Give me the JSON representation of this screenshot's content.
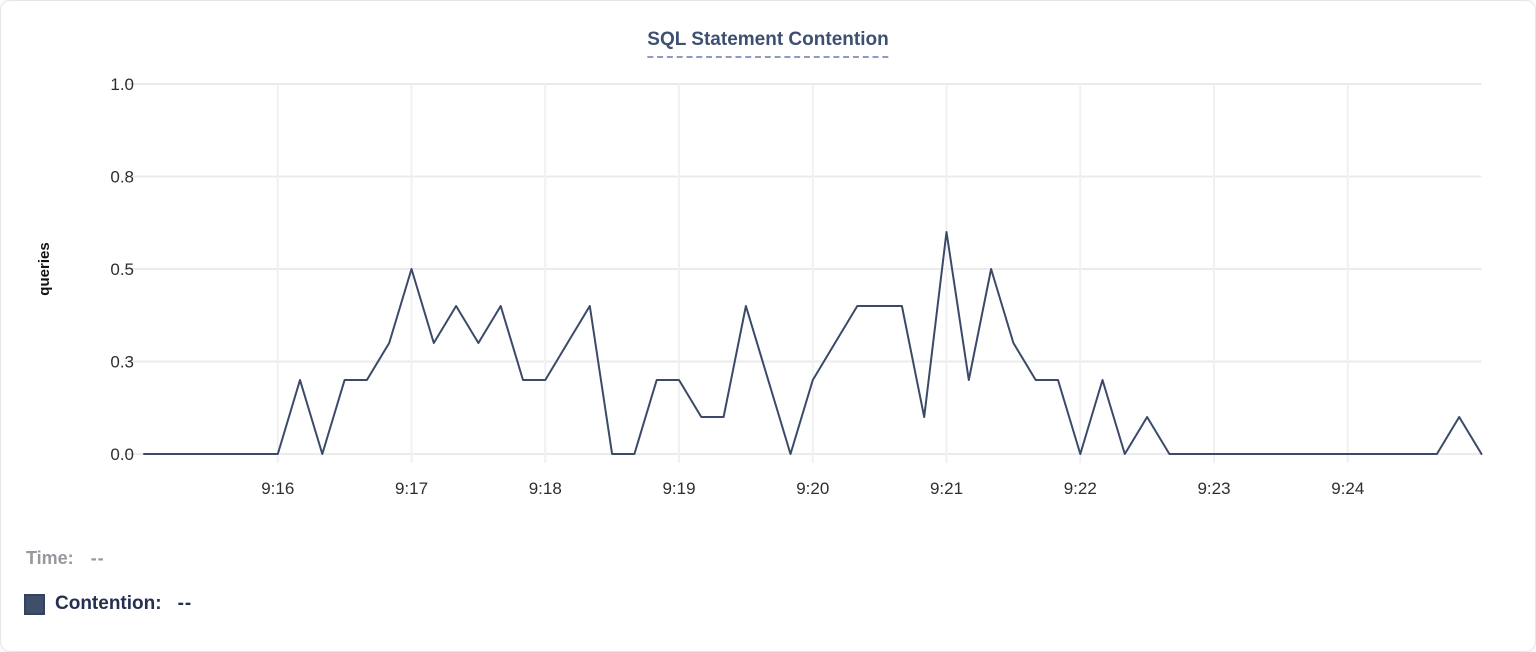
{
  "card": {
    "title": "SQL Statement Contention"
  },
  "legend": {
    "time_label": "Time:",
    "time_value": "--",
    "series_label": "Contention:",
    "series_value": "--",
    "swatch_color": "#3e4e6b",
    "swatch_border_color": "#33425e"
  },
  "colors": {
    "line": "#3b4a68",
    "title": "#3d5070",
    "title_underline": "#8f99c6",
    "h_grid": "#ebebee",
    "v_grid": "#f1f1f3",
    "tick_text": "#2e2e31"
  },
  "chart_data": {
    "type": "line",
    "title": "SQL Statement Contention",
    "xlabel": "",
    "ylabel": "queries",
    "ylim": [
      0,
      1
    ],
    "grid": true,
    "legend_position": "bottom-left",
    "y_ticks": [
      {
        "value": 0,
        "label": "0.0"
      },
      {
        "value": 0.25,
        "label": "0.3"
      },
      {
        "value": 0.5,
        "label": "0.5"
      },
      {
        "value": 0.75,
        "label": "0.8"
      },
      {
        "value": 1,
        "label": "1.0"
      }
    ],
    "x_tick_labels": [
      "9:16",
      "9:17",
      "9:18",
      "9:19",
      "9:20",
      "9:21",
      "9:22",
      "9:23",
      "9:24"
    ],
    "x_start": "9:15:00",
    "x_end": "9:25:00",
    "sample_interval_seconds": 10,
    "series": [
      {
        "name": "Contention",
        "unit": "queries",
        "color": "#3b4a68",
        "values": [
          0,
          0,
          0,
          0,
          0,
          0,
          0,
          0.2,
          0,
          0.2,
          0.2,
          0.3,
          0.5,
          0.3,
          0.4,
          0.3,
          0.4,
          0.2,
          0.2,
          0.3,
          0.4,
          0,
          0,
          0.2,
          0.2,
          0.1,
          0.1,
          0.4,
          0.2,
          0,
          0.2,
          0.3,
          0.4,
          0.4,
          0.4,
          0.1,
          0.6,
          0.2,
          0.5,
          0.3,
          0.2,
          0.2,
          0,
          0.2,
          0,
          0.1,
          0,
          0,
          0,
          0,
          0,
          0,
          0,
          0,
          0,
          0,
          0,
          0,
          0,
          0.1,
          0
        ]
      }
    ]
  }
}
